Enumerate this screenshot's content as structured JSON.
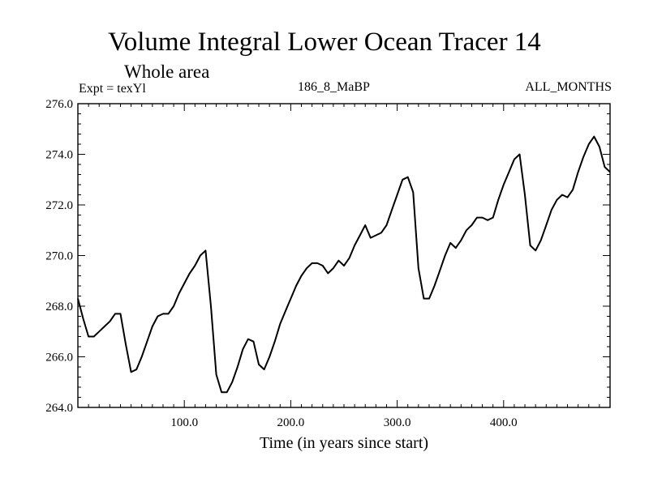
{
  "chart_data": {
    "type": "line",
    "title": "Volume Integral Lower Ocean Tracer 14",
    "subtitle": "Whole area",
    "expt_label": "Expt = texYl",
    "period_label": "186_8_MaBP",
    "months_label": "ALL_MONTHS",
    "xlabel": "Time (in years since start)",
    "ylabel": "",
    "xlim": [
      0,
      500
    ],
    "ylim": [
      264.0,
      276.0
    ],
    "x_ticks": [
      100,
      200,
      300,
      400
    ],
    "x_tick_labels": [
      "100.0",
      "200.0",
      "300.0",
      "400.0"
    ],
    "y_ticks": [
      264,
      266,
      268,
      270,
      272,
      274,
      276
    ],
    "y_tick_labels": [
      "264.0",
      "266.0",
      "268.0",
      "270.0",
      "272.0",
      "274.0",
      "276.0"
    ],
    "grid": false,
    "series": [
      {
        "x": [
          0,
          5,
          10,
          15,
          20,
          25,
          30,
          35,
          40,
          45,
          50,
          55,
          60,
          65,
          70,
          75,
          80,
          85,
          90,
          95,
          100,
          105,
          110,
          115,
          120,
          125,
          130,
          135,
          140,
          145,
          150,
          155,
          160,
          165,
          170,
          175,
          180,
          185,
          190,
          195,
          200,
          205,
          210,
          215,
          220,
          225,
          230,
          235,
          240,
          245,
          250,
          255,
          260,
          265,
          270,
          275,
          280,
          285,
          290,
          295,
          300,
          305,
          310,
          315,
          320,
          325,
          330,
          335,
          340,
          345,
          350,
          355,
          360,
          365,
          370,
          375,
          380,
          385,
          390,
          395,
          400,
          405,
          410,
          415,
          420,
          425,
          430,
          435,
          440,
          445,
          450,
          455,
          460,
          465,
          470,
          475,
          480,
          485,
          490,
          495,
          500
        ],
        "y": [
          268.3,
          267.5,
          266.8,
          266.8,
          267.0,
          267.2,
          267.4,
          267.7,
          267.7,
          266.5,
          265.4,
          265.5,
          266.0,
          266.6,
          267.2,
          267.6,
          267.7,
          267.7,
          268.0,
          268.5,
          268.9,
          269.3,
          269.6,
          270.0,
          270.2,
          268.0,
          265.3,
          264.6,
          264.6,
          265.0,
          265.6,
          266.3,
          266.7,
          266.6,
          265.7,
          265.5,
          266.0,
          266.6,
          267.3,
          267.8,
          268.3,
          268.8,
          269.2,
          269.5,
          269.7,
          269.7,
          269.6,
          269.3,
          269.5,
          269.8,
          269.6,
          269.9,
          270.4,
          270.8,
          271.2,
          270.7,
          270.8,
          270.9,
          271.2,
          271.8,
          272.4,
          273.0,
          273.1,
          272.5,
          269.5,
          268.3,
          268.3,
          268.8,
          269.4,
          270.0,
          270.5,
          270.3,
          270.6,
          271.0,
          271.2,
          271.5,
          271.5,
          271.4,
          271.5,
          272.2,
          272.8,
          273.3,
          273.8,
          274.0,
          272.4,
          270.4,
          270.2,
          270.6,
          271.2,
          271.8,
          272.2,
          272.4,
          272.3,
          272.6,
          273.3,
          273.9,
          274.4,
          274.7,
          274.3,
          273.5,
          273.3
        ]
      }
    ]
  }
}
